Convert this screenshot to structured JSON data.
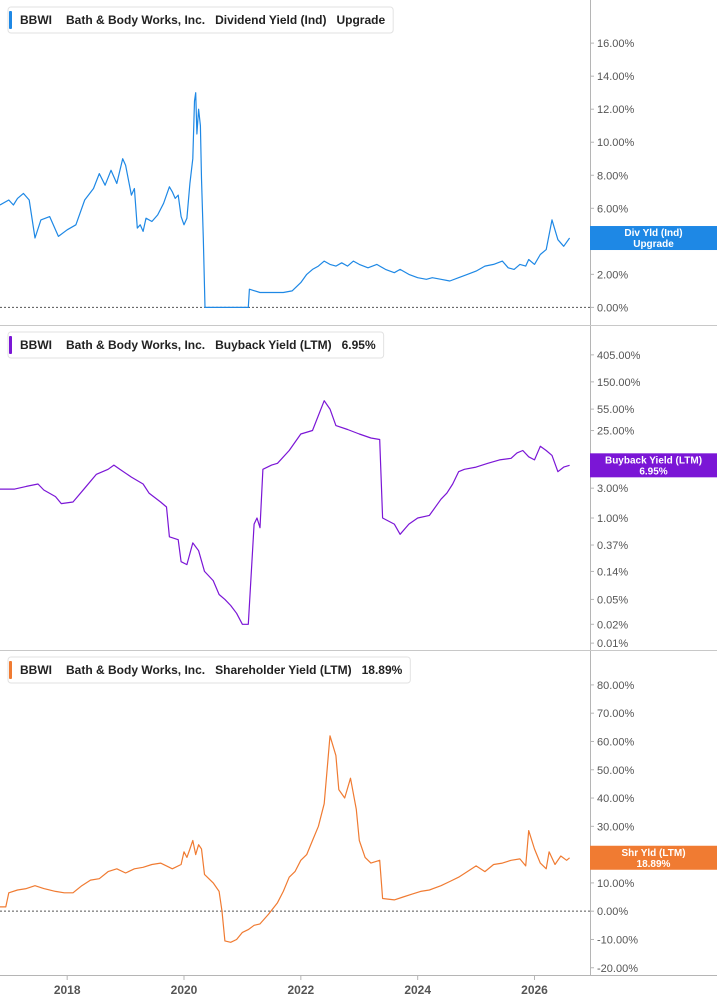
{
  "chart_data": [
    {
      "type": "line",
      "legend": {
        "ticker": "BBWI",
        "company": "Bath & Body Works, Inc.",
        "metric": "Dividend Yield (Ind)",
        "value": "Upgrade"
      },
      "tag": {
        "line1": "Div Yld (Ind)",
        "line2": "Upgrade"
      },
      "color": "#1e88e5",
      "scale": "linear",
      "ylim": [
        -0.4,
        17.4
      ],
      "yticks": [
        0,
        2,
        4,
        6,
        8,
        10,
        12,
        14,
        16
      ],
      "ytick_labels": [
        "0.00%",
        "2.00%",
        "4.00%",
        "6.00%",
        "8.00%",
        "10.00%",
        "12.00%",
        "14.00%",
        "16.00%"
      ],
      "zero_line": true,
      "series": [
        {
          "x": [
            2016.85,
            2017.0,
            2017.08,
            2017.15,
            2017.25,
            2017.35,
            2017.45,
            2017.55,
            2017.7,
            2017.85,
            2018.0,
            2018.15,
            2018.3,
            2018.45,
            2018.55,
            2018.65,
            2018.75,
            2018.85,
            2018.95,
            2019.0,
            2019.1,
            2019.15,
            2019.2,
            2019.25,
            2019.3,
            2019.35,
            2019.45,
            2019.55,
            2019.65,
            2019.75,
            2019.8,
            2019.85,
            2019.9,
            2019.95,
            2020.0,
            2020.05,
            2020.1,
            2020.15,
            2020.18,
            2020.2,
            2020.22,
            2020.25,
            2020.28,
            2020.3,
            2020.33,
            2020.36,
            2021.1,
            2021.12,
            2021.3,
            2021.5,
            2021.7,
            2021.85,
            2022.0,
            2022.1,
            2022.2,
            2022.3,
            2022.4,
            2022.5,
            2022.6,
            2022.7,
            2022.8,
            2022.9,
            2023.0,
            2023.15,
            2023.3,
            2023.45,
            2023.6,
            2023.7,
            2023.85,
            2024.0,
            2024.15,
            2024.25,
            2024.4,
            2024.55,
            2024.7,
            2024.85,
            2025.0,
            2025.15,
            2025.3,
            2025.45,
            2025.55,
            2025.65,
            2025.75,
            2025.85,
            2025.9,
            2026.0,
            2026.1,
            2026.2,
            2026.3,
            2026.4,
            2026.5,
            2026.6
          ],
          "values": [
            6.2,
            6.5,
            6.2,
            6.6,
            6.9,
            6.5,
            4.2,
            5.3,
            5.5,
            4.3,
            4.7,
            5.0,
            6.5,
            7.2,
            8.1,
            7.4,
            8.3,
            7.5,
            9.0,
            8.6,
            6.8,
            7.2,
            4.8,
            5.0,
            4.6,
            5.4,
            5.2,
            5.6,
            6.3,
            7.3,
            7.0,
            6.6,
            6.8,
            5.5,
            5.0,
            5.4,
            7.5,
            9.0,
            12.5,
            13.0,
            10.5,
            12.0,
            11.0,
            7.8,
            4.2,
            0.0,
            0.0,
            1.1,
            0.9,
            0.9,
            0.9,
            1.0,
            1.5,
            2.0,
            2.3,
            2.5,
            2.8,
            2.6,
            2.5,
            2.7,
            2.5,
            2.8,
            2.6,
            2.4,
            2.6,
            2.3,
            2.1,
            2.3,
            2.0,
            1.8,
            1.7,
            1.8,
            1.7,
            1.6,
            1.8,
            2.0,
            2.2,
            2.5,
            2.6,
            2.8,
            2.4,
            2.3,
            2.6,
            2.5,
            2.9,
            2.6,
            3.2,
            3.5,
            5.3,
            4.1,
            3.7,
            4.2
          ]
        }
      ]
    },
    {
      "type": "line",
      "legend": {
        "ticker": "BBWI",
        "company": "Bath & Body Works, Inc.",
        "metric": "Buyback Yield (LTM)",
        "value": "6.95%"
      },
      "tag": {
        "line1": "Buyback Yield (LTM)",
        "line2": "6.95%"
      },
      "color": "#7b16d6",
      "scale": "log",
      "ylim": [
        0.009,
        700
      ],
      "yticks": [
        0.01,
        0.02,
        0.05,
        0.14,
        0.37,
        1,
        3,
        25,
        55,
        150,
        405
      ],
      "ytick_labels": [
        "0.01%",
        "0.02%",
        "0.05%",
        "0.14%",
        "0.37%",
        "1.00%",
        "3.00%",
        "25.00%",
        "55.00%",
        "150.00%",
        "405.00%"
      ],
      "zero_line": false,
      "series": [
        {
          "x": [
            2016.85,
            2017.1,
            2017.3,
            2017.5,
            2017.6,
            2017.8,
            2017.9,
            2018.1,
            2018.3,
            2018.5,
            2018.7,
            2018.8,
            2018.9,
            2019.1,
            2019.3,
            2019.4,
            2019.6,
            2019.7,
            2019.75,
            2019.9,
            2019.95,
            2020.05,
            2020.15,
            2020.25,
            2020.35,
            2020.5,
            2020.6,
            2020.7,
            2020.8,
            2020.9,
            2021.0,
            2021.1,
            2021.2,
            2021.25,
            2021.3,
            2021.35,
            2021.5,
            2021.6,
            2021.8,
            2022.0,
            2022.2,
            2022.4,
            2022.5,
            2022.6,
            2022.8,
            2023.0,
            2023.2,
            2023.35,
            2023.4,
            2023.6,
            2023.7,
            2023.85,
            2024.0,
            2024.2,
            2024.4,
            2024.5,
            2024.6,
            2024.7,
            2024.8,
            2025.0,
            2025.2,
            2025.4,
            2025.6,
            2025.7,
            2025.8,
            2025.9,
            2026.0,
            2026.1,
            2026.2,
            2026.3,
            2026.4,
            2026.5,
            2026.6
          ],
          "values": [
            2.9,
            2.9,
            3.2,
            3.5,
            2.8,
            2.2,
            1.7,
            1.8,
            3.0,
            5.0,
            6.0,
            7.0,
            6.0,
            4.5,
            3.5,
            2.5,
            1.8,
            1.5,
            0.5,
            0.45,
            0.2,
            0.18,
            0.4,
            0.3,
            0.14,
            0.1,
            0.06,
            0.05,
            0.04,
            0.03,
            0.02,
            0.02,
            0.8,
            1.0,
            0.7,
            6.0,
            7.0,
            7.5,
            12.0,
            22.0,
            25.0,
            75.0,
            55.0,
            30.0,
            26.0,
            22.0,
            19.0,
            18.0,
            1.0,
            0.8,
            0.55,
            0.8,
            1.0,
            1.1,
            2.0,
            2.5,
            3.5,
            5.5,
            6.0,
            6.5,
            7.5,
            8.5,
            9.0,
            11.0,
            12.0,
            9.5,
            8.5,
            14.0,
            12.0,
            10.0,
            5.5,
            6.5,
            6.95
          ]
        }
      ]
    },
    {
      "type": "line",
      "legend": {
        "ticker": "BBWI",
        "company": "Bath & Body Works, Inc.",
        "metric": "Shareholder Yield (LTM)",
        "value": "18.89%"
      },
      "tag": {
        "line1": "Shr Yld (LTM)",
        "line2": "18.89%"
      },
      "color": "#f07b32",
      "scale": "linear",
      "ylim": [
        -21.5,
        83.5
      ],
      "yticks": [
        -20,
        -10,
        0,
        10,
        20,
        30,
        40,
        50,
        60,
        70,
        80
      ],
      "ytick_labels": [
        "-20.00%",
        "-10.00%",
        "0.00%",
        "10.00%",
        "20.00%",
        "30.00%",
        "40.00%",
        "50.00%",
        "60.00%",
        "70.00%",
        "80.00%"
      ],
      "zero_line": true,
      "series": [
        {
          "x": [
            2016.85,
            2016.95,
            2017.0,
            2017.15,
            2017.3,
            2017.45,
            2017.6,
            2017.8,
            2017.95,
            2018.1,
            2018.25,
            2018.4,
            2018.55,
            2018.7,
            2018.85,
            2019.0,
            2019.15,
            2019.3,
            2019.45,
            2019.6,
            2019.7,
            2019.8,
            2019.95,
            2020.0,
            2020.05,
            2020.1,
            2020.15,
            2020.2,
            2020.25,
            2020.3,
            2020.35,
            2020.5,
            2020.6,
            2020.65,
            2020.7,
            2020.8,
            2020.9,
            2021.0,
            2021.1,
            2021.2,
            2021.3,
            2021.45,
            2021.6,
            2021.7,
            2021.8,
            2021.9,
            2022.0,
            2022.1,
            2022.2,
            2022.3,
            2022.4,
            2022.45,
            2022.5,
            2022.6,
            2022.65,
            2022.75,
            2022.85,
            2022.95,
            2023.0,
            2023.1,
            2023.2,
            2023.35,
            2023.4,
            2023.6,
            2023.75,
            2023.9,
            2024.05,
            2024.2,
            2024.4,
            2024.55,
            2024.7,
            2024.85,
            2025.0,
            2025.15,
            2025.3,
            2025.45,
            2025.6,
            2025.75,
            2025.85,
            2025.9,
            2026.0,
            2026.1,
            2026.2,
            2026.25,
            2026.35,
            2026.45,
            2026.55,
            2026.6
          ],
          "values": [
            1.5,
            1.5,
            6.5,
            7.5,
            8.0,
            9.0,
            8.0,
            7.0,
            6.5,
            6.5,
            9.0,
            11.0,
            11.5,
            14.0,
            15.0,
            13.5,
            15.0,
            15.5,
            16.5,
            17.0,
            16.0,
            15.0,
            16.5,
            21.0,
            19.0,
            22.0,
            25.0,
            20.0,
            23.5,
            22.0,
            13.0,
            10.0,
            7.0,
            0.0,
            -10.5,
            -11.0,
            -10.0,
            -7.5,
            -6.5,
            -5.0,
            -4.5,
            -1.0,
            3.0,
            7.0,
            12.0,
            14.0,
            18.0,
            20.0,
            25.0,
            30.0,
            38.0,
            50.0,
            62.0,
            55.0,
            43.0,
            40.0,
            47.0,
            36.0,
            25.0,
            19.0,
            17.0,
            18.0,
            4.5,
            4.0,
            5.0,
            6.0,
            7.0,
            7.5,
            9.0,
            10.5,
            12.0,
            14.0,
            16.0,
            14.0,
            16.5,
            17.0,
            18.0,
            18.5,
            16.0,
            28.5,
            22.0,
            17.0,
            15.0,
            21.0,
            16.5,
            19.5,
            18.0,
            18.89
          ]
        }
      ]
    }
  ],
  "x_axis": {
    "xlim": [
      2016.85,
      2026.95
    ],
    "ticks": [
      2018,
      2020,
      2022,
      2024,
      2026
    ],
    "labels": [
      "2018",
      "2020",
      "2022",
      "2024",
      "2026"
    ]
  }
}
